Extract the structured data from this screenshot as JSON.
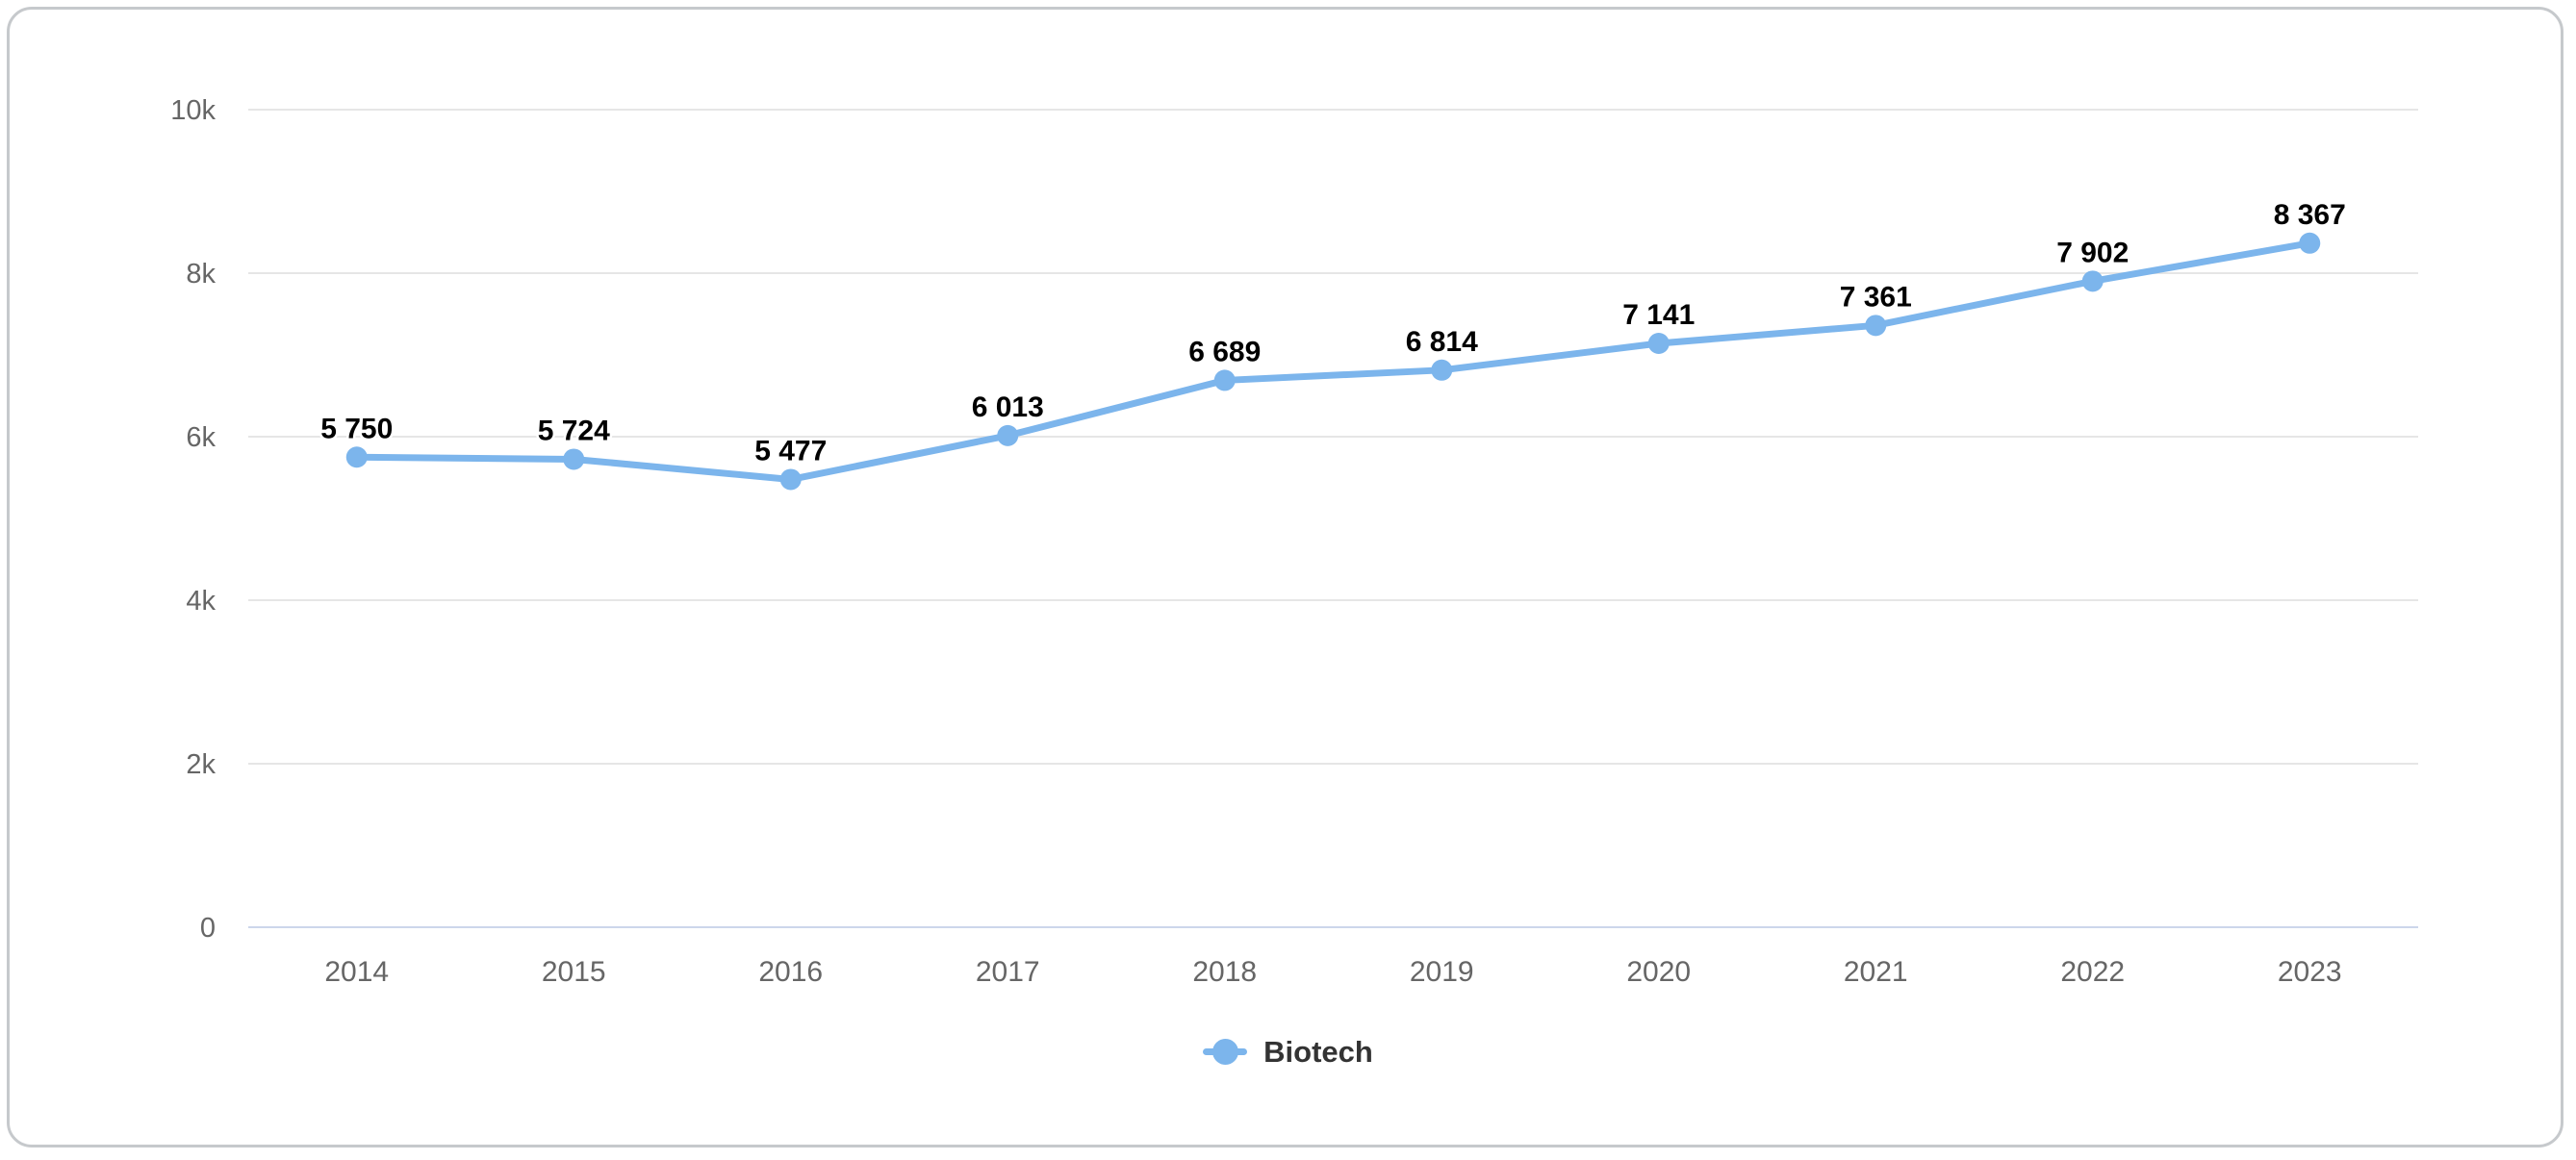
{
  "chart_data": {
    "type": "line",
    "title": "",
    "xlabel": "",
    "ylabel": "",
    "categories": [
      "2014",
      "2015",
      "2016",
      "2017",
      "2018",
      "2019",
      "2020",
      "2021",
      "2022",
      "2023"
    ],
    "series": [
      {
        "name": "Biotech",
        "values": [
          5750,
          5724,
          5477,
          6013,
          6689,
          6814,
          7141,
          7361,
          7902,
          8367
        ],
        "data_labels": [
          "5 750",
          "5 724",
          "5 477",
          "6 013",
          "6 689",
          "6 814",
          "7 141",
          "7 361",
          "7 902",
          "8 367"
        ],
        "color": "#7cb5ec"
      }
    ],
    "ylim": [
      0,
      10000
    ],
    "yticks": [
      {
        "value": 0,
        "label": "0"
      },
      {
        "value": 2000,
        "label": "2k"
      },
      {
        "value": 4000,
        "label": "4k"
      },
      {
        "value": 6000,
        "label": "6k"
      },
      {
        "value": 8000,
        "label": "8k"
      },
      {
        "value": 10000,
        "label": "10k"
      }
    ],
    "grid": true,
    "legend_position": "bottom-center"
  },
  "legend": {
    "biotech_label": "Biotech"
  },
  "colors": {
    "series": "#7cb5ec",
    "grid_line": "#e6e6e6",
    "axis_line": "#ccd6eb",
    "tick_label": "#666666",
    "data_label": "#000000",
    "data_label_halo": "#ffffff",
    "legend_text": "#333333",
    "card_border": "#c6c9cc",
    "background": "#ffffff"
  }
}
